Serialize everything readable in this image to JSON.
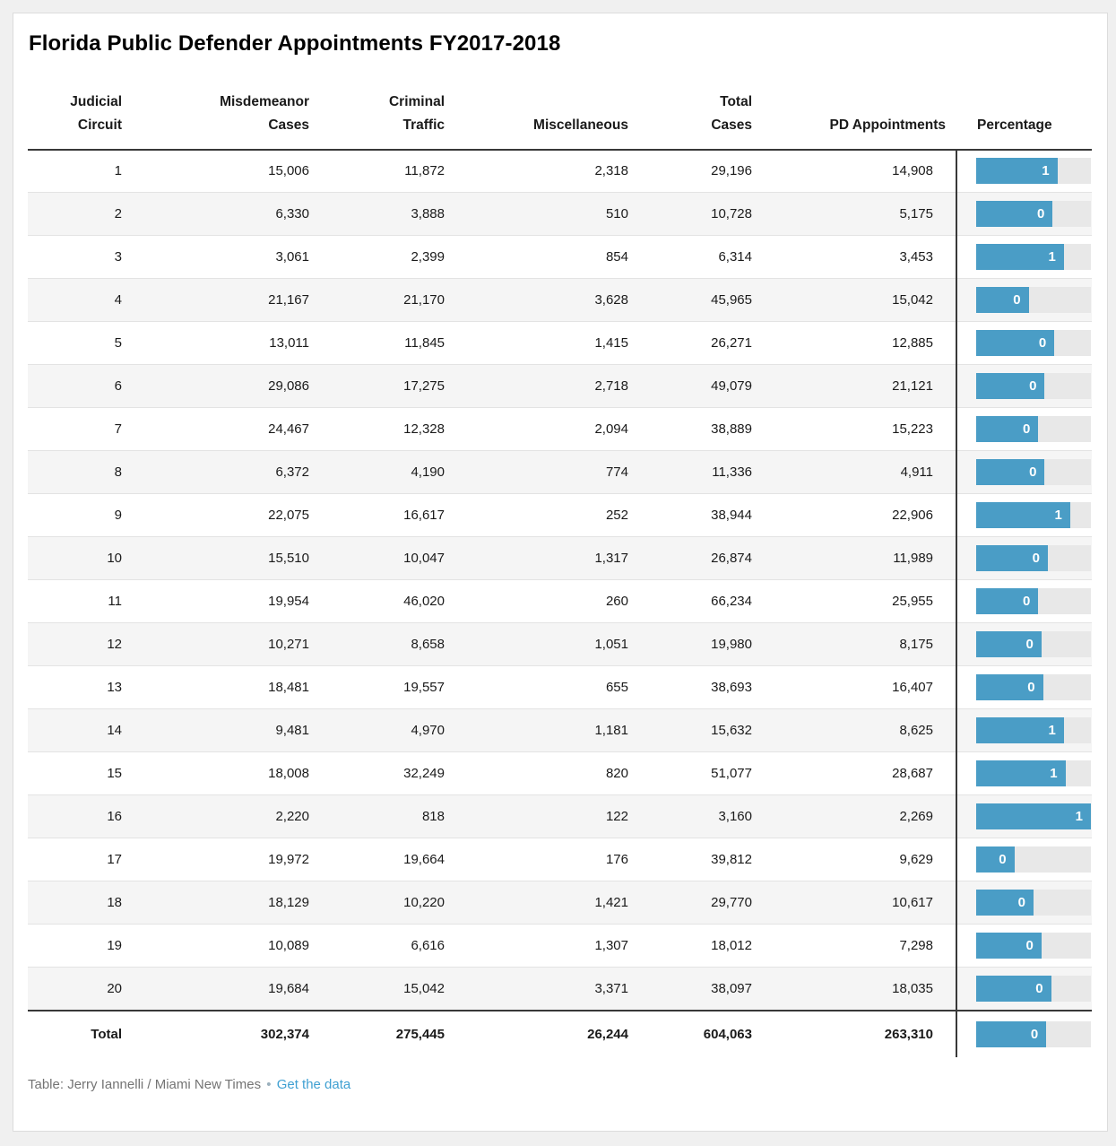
{
  "title": "Florida Public Defender Appointments FY2017-2018",
  "colors": {
    "bar_fill": "#4a9dc6",
    "bar_track": "#e8e8e8",
    "row_stripe": "#f5f5f5",
    "rule_dark": "#383838",
    "link_blue": "#3fa0d2",
    "footer_gray": "#747474",
    "page_background": "#f0f0f0"
  },
  "table": {
    "columns": [
      {
        "label": "Judicial\nCircuit"
      },
      {
        "label": "Misdemeanor\nCases"
      },
      {
        "label": "Criminal\nTraffic"
      },
      {
        "label": "Miscellaneous"
      },
      {
        "label": "Total\nCases"
      },
      {
        "label": "PD Appointments"
      },
      {
        "label": "Percentage"
      }
    ],
    "rows": [
      {
        "circuit": "1",
        "misdemeanor": "15,006",
        "criminal_traffic": "11,872",
        "miscellaneous": "2,318",
        "total_cases": "29,196",
        "pd_appointments": "14,908",
        "pct": 0.51,
        "pct_label": "1"
      },
      {
        "circuit": "2",
        "misdemeanor": "6,330",
        "criminal_traffic": "3,888",
        "miscellaneous": "510",
        "total_cases": "10,728",
        "pd_appointments": "5,175",
        "pct": 0.48,
        "pct_label": "0"
      },
      {
        "circuit": "3",
        "misdemeanor": "3,061",
        "criminal_traffic": "2,399",
        "miscellaneous": "854",
        "total_cases": "6,314",
        "pd_appointments": "3,453",
        "pct": 0.55,
        "pct_label": "1"
      },
      {
        "circuit": "4",
        "misdemeanor": "21,167",
        "criminal_traffic": "21,170",
        "miscellaneous": "3,628",
        "total_cases": "45,965",
        "pd_appointments": "15,042",
        "pct": 0.33,
        "pct_label": "0"
      },
      {
        "circuit": "5",
        "misdemeanor": "13,011",
        "criminal_traffic": "11,845",
        "miscellaneous": "1,415",
        "total_cases": "26,271",
        "pd_appointments": "12,885",
        "pct": 0.49,
        "pct_label": "0"
      },
      {
        "circuit": "6",
        "misdemeanor": "29,086",
        "criminal_traffic": "17,275",
        "miscellaneous": "2,718",
        "total_cases": "49,079",
        "pd_appointments": "21,121",
        "pct": 0.43,
        "pct_label": "0"
      },
      {
        "circuit": "7",
        "misdemeanor": "24,467",
        "criminal_traffic": "12,328",
        "miscellaneous": "2,094",
        "total_cases": "38,889",
        "pd_appointments": "15,223",
        "pct": 0.39,
        "pct_label": "0"
      },
      {
        "circuit": "8",
        "misdemeanor": "6,372",
        "criminal_traffic": "4,190",
        "miscellaneous": "774",
        "total_cases": "11,336",
        "pd_appointments": "4,911",
        "pct": 0.43,
        "pct_label": "0"
      },
      {
        "circuit": "9",
        "misdemeanor": "22,075",
        "criminal_traffic": "16,617",
        "miscellaneous": "252",
        "total_cases": "38,944",
        "pd_appointments": "22,906",
        "pct": 0.59,
        "pct_label": "1"
      },
      {
        "circuit": "10",
        "misdemeanor": "15,510",
        "criminal_traffic": "10,047",
        "miscellaneous": "1,317",
        "total_cases": "26,874",
        "pd_appointments": "11,989",
        "pct": 0.45,
        "pct_label": "0"
      },
      {
        "circuit": "11",
        "misdemeanor": "19,954",
        "criminal_traffic": "46,020",
        "miscellaneous": "260",
        "total_cases": "66,234",
        "pd_appointments": "25,955",
        "pct": 0.39,
        "pct_label": "0"
      },
      {
        "circuit": "12",
        "misdemeanor": "10,271",
        "criminal_traffic": "8,658",
        "miscellaneous": "1,051",
        "total_cases": "19,980",
        "pd_appointments": "8,175",
        "pct": 0.41,
        "pct_label": "0"
      },
      {
        "circuit": "13",
        "misdemeanor": "18,481",
        "criminal_traffic": "19,557",
        "miscellaneous": "655",
        "total_cases": "38,693",
        "pd_appointments": "16,407",
        "pct": 0.42,
        "pct_label": "0"
      },
      {
        "circuit": "14",
        "misdemeanor": "9,481",
        "criminal_traffic": "4,970",
        "miscellaneous": "1,181",
        "total_cases": "15,632",
        "pd_appointments": "8,625",
        "pct": 0.55,
        "pct_label": "1"
      },
      {
        "circuit": "15",
        "misdemeanor": "18,008",
        "criminal_traffic": "32,249",
        "miscellaneous": "820",
        "total_cases": "51,077",
        "pd_appointments": "28,687",
        "pct": 0.56,
        "pct_label": "1"
      },
      {
        "circuit": "16",
        "misdemeanor": "2,220",
        "criminal_traffic": "818",
        "miscellaneous": "122",
        "total_cases": "3,160",
        "pd_appointments": "2,269",
        "pct": 0.72,
        "pct_label": "1"
      },
      {
        "circuit": "17",
        "misdemeanor": "19,972",
        "criminal_traffic": "19,664",
        "miscellaneous": "176",
        "total_cases": "39,812",
        "pd_appointments": "9,629",
        "pct": 0.24,
        "pct_label": "0"
      },
      {
        "circuit": "18",
        "misdemeanor": "18,129",
        "criminal_traffic": "10,220",
        "miscellaneous": "1,421",
        "total_cases": "29,770",
        "pd_appointments": "10,617",
        "pct": 0.36,
        "pct_label": "0"
      },
      {
        "circuit": "19",
        "misdemeanor": "10,089",
        "criminal_traffic": "6,616",
        "miscellaneous": "1,307",
        "total_cases": "18,012",
        "pd_appointments": "7,298",
        "pct": 0.41,
        "pct_label": "0"
      },
      {
        "circuit": "20",
        "misdemeanor": "19,684",
        "criminal_traffic": "15,042",
        "miscellaneous": "3,371",
        "total_cases": "38,097",
        "pd_appointments": "18,035",
        "pct": 0.47,
        "pct_label": "0"
      }
    ],
    "total": {
      "circuit": "Total",
      "misdemeanor": "302,374",
      "criminal_traffic": "275,445",
      "miscellaneous": "26,244",
      "total_cases": "604,063",
      "pd_appointments": "263,310",
      "pct": 0.44,
      "pct_label": "0"
    }
  },
  "footer": {
    "credit": "Table: Jerry Iannelli / Miami New Times",
    "separator": "•",
    "link_label": "Get the data"
  },
  "chart_data": {
    "type": "table",
    "title": "Florida Public Defender Appointments FY2017-2018",
    "columns": [
      "Judicial Circuit",
      "Misdemeanor Cases",
      "Criminal Traffic",
      "Miscellaneous",
      "Total Cases",
      "PD Appointments",
      "Percentage"
    ],
    "percentage_column": {
      "render": "bar",
      "bar_scale_max": 0.72,
      "value_display": "rounded to 0 or 1"
    },
    "rows": [
      [
        1,
        15006,
        11872,
        2318,
        29196,
        14908,
        0.51
      ],
      [
        2,
        6330,
        3888,
        510,
        10728,
        5175,
        0.48
      ],
      [
        3,
        3061,
        2399,
        854,
        6314,
        3453,
        0.55
      ],
      [
        4,
        21167,
        21170,
        3628,
        45965,
        15042,
        0.33
      ],
      [
        5,
        13011,
        11845,
        1415,
        26271,
        12885,
        0.49
      ],
      [
        6,
        29086,
        17275,
        2718,
        49079,
        21121,
        0.43
      ],
      [
        7,
        24467,
        12328,
        2094,
        38889,
        15223,
        0.39
      ],
      [
        8,
        6372,
        4190,
        774,
        11336,
        4911,
        0.43
      ],
      [
        9,
        22075,
        16617,
        252,
        38944,
        22906,
        0.59
      ],
      [
        10,
        15510,
        10047,
        1317,
        26874,
        11989,
        0.45
      ],
      [
        11,
        19954,
        46020,
        260,
        66234,
        25955,
        0.39
      ],
      [
        12,
        10271,
        8658,
        1051,
        19980,
        8175,
        0.41
      ],
      [
        13,
        18481,
        19557,
        655,
        38693,
        16407,
        0.42
      ],
      [
        14,
        9481,
        4970,
        1181,
        15632,
        8625,
        0.55
      ],
      [
        15,
        18008,
        32249,
        820,
        51077,
        28687,
        0.56
      ],
      [
        16,
        2220,
        818,
        122,
        3160,
        2269,
        0.72
      ],
      [
        17,
        19972,
        19664,
        176,
        39812,
        9629,
        0.24
      ],
      [
        18,
        18129,
        10220,
        1421,
        29770,
        10617,
        0.36
      ],
      [
        19,
        10089,
        6616,
        1307,
        18012,
        7298,
        0.41
      ],
      [
        20,
        19684,
        15042,
        3371,
        38097,
        18035,
        0.47
      ]
    ],
    "total_row": [
      "Total",
      302374,
      275445,
      26244,
      604063,
      263310,
      0.44
    ]
  }
}
